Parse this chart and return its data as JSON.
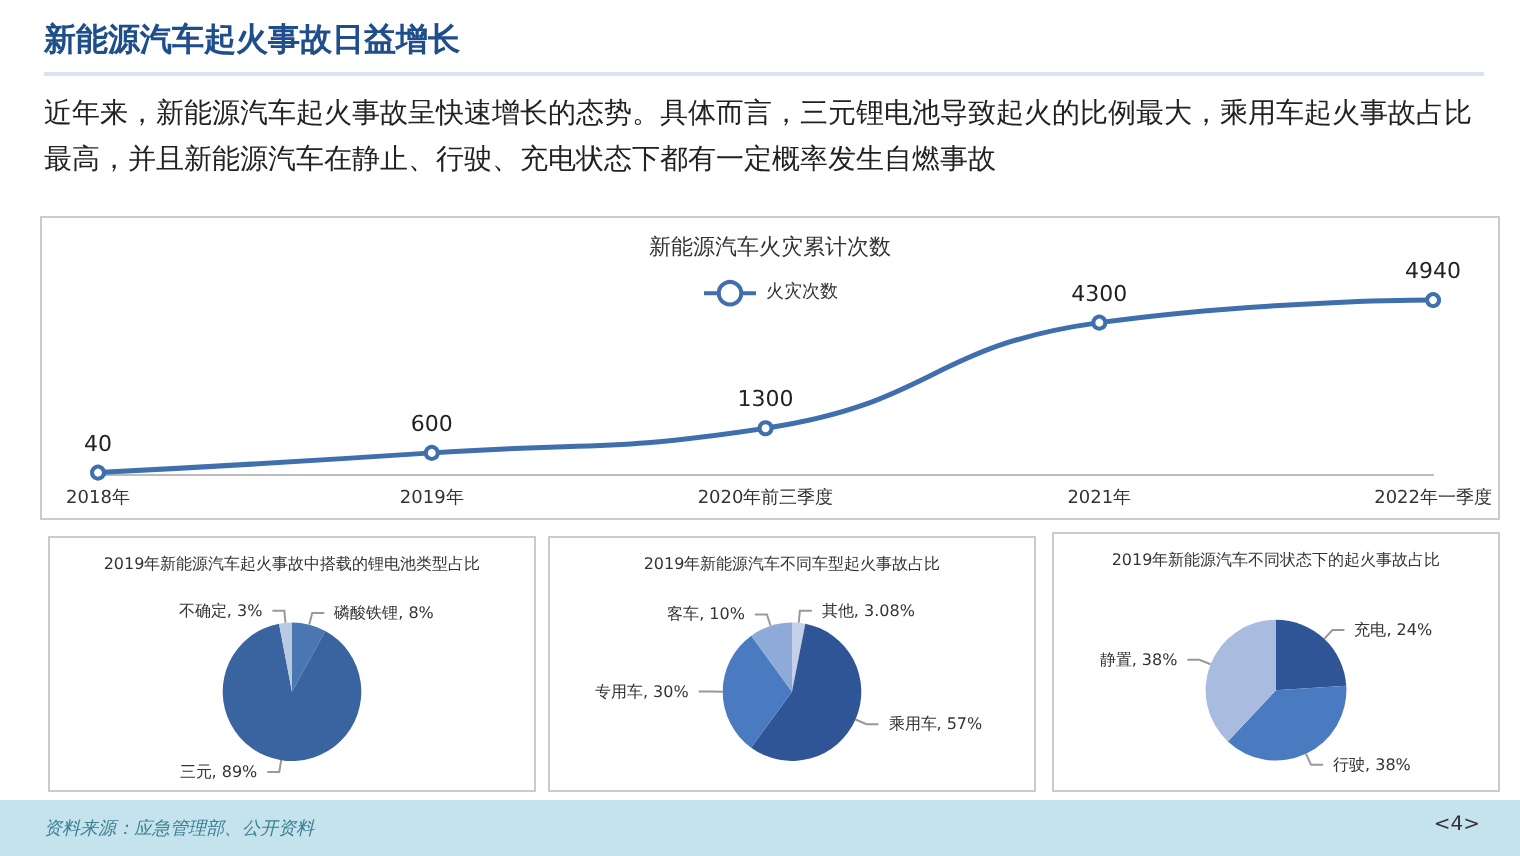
{
  "chart_data": [
    {
      "type": "line",
      "title": "新能源汽车火灾累计次数",
      "annotations": [
        "新能源汽车起火事故日益增长",
        "近年来，新能源汽车起火事故呈快速增长的态势。具体而言，三元锂电池导致起火的比例最大，乘用车起火事故占比最高，并且新能源汽车在静止、行驶、充电状态下都有一定概率发生自燃事故"
      ],
      "categories": [
        "2018年",
        "2019年",
        "2020年前三季度",
        "2021年",
        "2022年一季度"
      ],
      "series": [
        {
          "name": "火灾次数",
          "color": "#3f6fad",
          "values": [
            40,
            600,
            1300,
            4300,
            4940
          ]
        }
      ],
      "marker": "circle",
      "data_labels": true,
      "legend": "top",
      "grid": false,
      "tick_labels": "x"
    },
    {
      "type": "pie",
      "title": "2019年新能源汽车起火事故中搭载的锂电池类型占比",
      "categories": [
        "磷酸铁锂",
        "三元",
        "不确定"
      ],
      "values": [
        8,
        89,
        3
      ],
      "value_labels": [
        "8%",
        "89%",
        "3%"
      ],
      "colors": [
        "#4a76b2",
        "#3a64a0",
        "#b9c9e2"
      ]
    },
    {
      "type": "pie",
      "title": "2019年新能源汽车不同车型起火事故占比",
      "categories": [
        "其他",
        "乘用车",
        "专用车",
        "客车"
      ],
      "values": [
        3.08,
        57,
        30,
        10
      ],
      "value_labels": [
        "3.08%",
        "57%",
        "30%",
        "10%"
      ],
      "colors": [
        "#c3d0e6",
        "#2f5597",
        "#4a7bc0",
        "#8eaad8"
      ]
    },
    {
      "type": "pie",
      "title": "2019年新能源汽车不同状态下的起火事故占比",
      "categories": [
        "充电",
        "行驶",
        "静置"
      ],
      "values": [
        24,
        38,
        38
      ],
      "value_labels": [
        "24%",
        "38%",
        "38%"
      ],
      "colors": [
        "#2f5597",
        "#4a7bc0",
        "#a9bce0"
      ],
      "annotations": [
        "资料来源：应急管理部、公开资料",
        "<4>"
      ]
    }
  ]
}
